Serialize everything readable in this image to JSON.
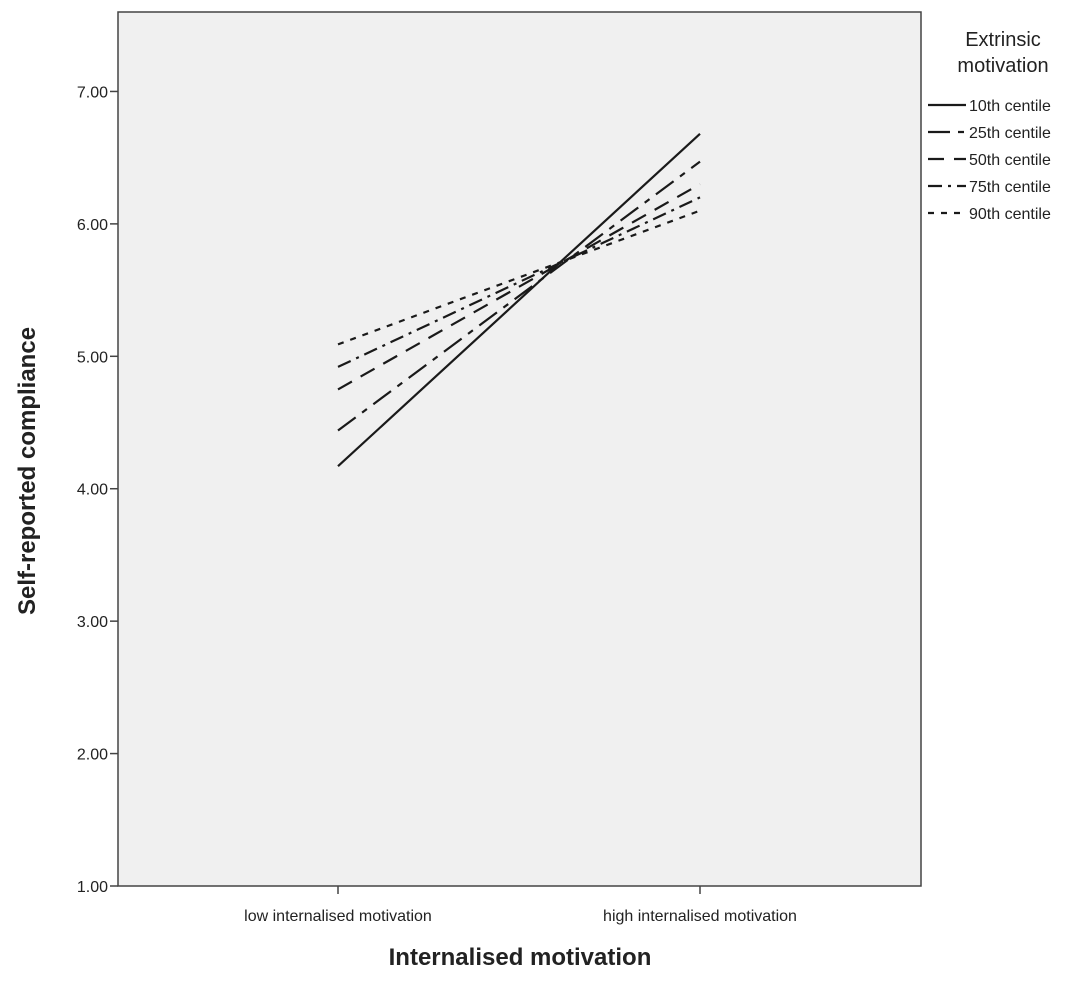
{
  "chart_data": {
    "type": "line",
    "title": "",
    "xlabel": "Internalised motivation",
    "ylabel": "Self-reported compliance",
    "categories": [
      "low internalised motivation",
      "high internalised motivation"
    ],
    "ylim": [
      1.0,
      7.6
    ],
    "yticks": [
      "1.00",
      "2.00",
      "3.00",
      "4.00",
      "5.00",
      "6.00",
      "7.00"
    ],
    "grid": false,
    "legend": {
      "title_lines": [
        "Extrinsic",
        "motivation"
      ],
      "placement": "right"
    },
    "series": [
      {
        "name": "10th centile",
        "values": [
          4.17,
          6.68
        ],
        "dash": ""
      },
      {
        "name": "25th centile",
        "values": [
          4.44,
          6.47
        ],
        "dash": "22,8,6,8"
      },
      {
        "name": "50th centile",
        "values": [
          4.75,
          6.3
        ],
        "dash": "16,10"
      },
      {
        "name": "75th centile",
        "values": [
          4.92,
          6.2
        ],
        "dash": "14,6,3,6"
      },
      {
        "name": "90th centile",
        "values": [
          5.09,
          6.1
        ],
        "dash": "6,7"
      }
    ]
  }
}
